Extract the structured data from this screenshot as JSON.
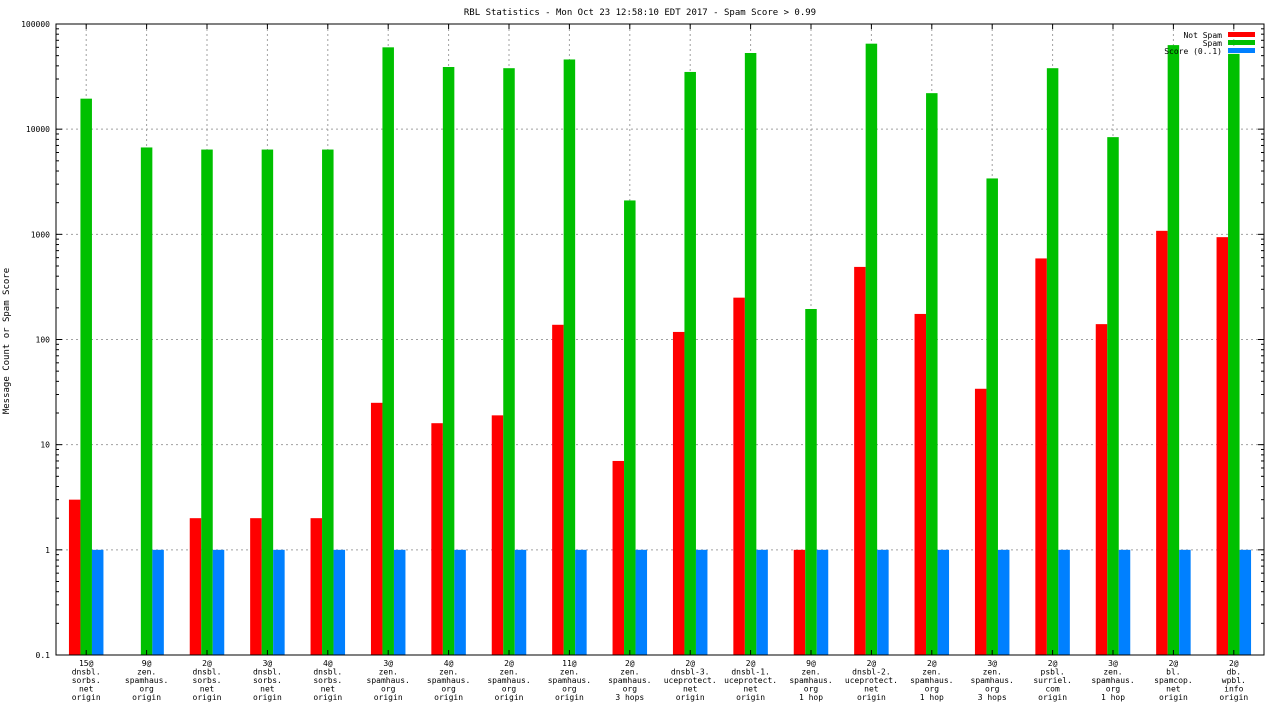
{
  "chart_data": {
    "type": "bar",
    "title": "RBL Statistics - Mon Oct 23 12:58:10 EDT 2017 - Spam Score > 0.99",
    "xlabel": "",
    "ylabel": "Message Count or Spam Score",
    "yscale": "log",
    "ylim": [
      0.1,
      100000
    ],
    "yticks": [
      "0.1",
      "1",
      "10",
      "100",
      "1000",
      "10000",
      "100000"
    ],
    "grid": true,
    "legend_position": "top-right",
    "categories": [
      [
        "15@",
        "dnsbl.",
        "sorbs.",
        "net",
        "origin"
      ],
      [
        "9@",
        "zen.",
        "spamhaus.",
        "org",
        "origin"
      ],
      [
        "2@",
        "dnsbl.",
        "sorbs.",
        "net",
        "origin"
      ],
      [
        "3@",
        "dnsbl.",
        "sorbs.",
        "net",
        "origin"
      ],
      [
        "4@",
        "dnsbl.",
        "sorbs.",
        "net",
        "origin"
      ],
      [
        "3@",
        "zen.",
        "spamhaus.",
        "org",
        "origin"
      ],
      [
        "4@",
        "zen.",
        "spamhaus.",
        "org",
        "origin"
      ],
      [
        "2@",
        "zen.",
        "spamhaus.",
        "org",
        "origin"
      ],
      [
        "11@",
        "zen.",
        "spamhaus.",
        "org",
        "origin"
      ],
      [
        "2@",
        "zen.",
        "spamhaus.",
        "org",
        "3 hops"
      ],
      [
        "2@",
        "dnsbl-3.",
        "uceprotect.",
        "net",
        "origin"
      ],
      [
        "2@",
        "dnsbl-1.",
        "uceprotect.",
        "net",
        "origin"
      ],
      [
        "9@",
        "zen.",
        "spamhaus.",
        "org",
        "1 hop"
      ],
      [
        "2@",
        "dnsbl-2.",
        "uceprotect.",
        "net",
        "origin"
      ],
      [
        "2@",
        "zen.",
        "spamhaus.",
        "org",
        "1 hop"
      ],
      [
        "3@",
        "zen.",
        "spamhaus.",
        "org",
        "3 hops"
      ],
      [
        "2@",
        "psbl.",
        "surriel.",
        "com",
        "origin"
      ],
      [
        "3@",
        "zen.",
        "spamhaus.",
        "org",
        "1 hop"
      ],
      [
        "2@",
        "bl.",
        "spamcop.",
        "net",
        "origin"
      ],
      [
        "2@",
        "db.",
        "wpbl.",
        "info",
        "origin"
      ]
    ],
    "series": [
      {
        "name": "Not Spam",
        "color": "#ff0000",
        "values": [
          3,
          null,
          2,
          2,
          2,
          25,
          16,
          19,
          138,
          7,
          118,
          250,
          1,
          490,
          175,
          34,
          590,
          140,
          1080,
          940
        ]
      },
      {
        "name": "Spam",
        "color": "#00c000",
        "values": [
          19500,
          6700,
          6400,
          6400,
          6400,
          60000,
          39000,
          38000,
          46000,
          2100,
          35000,
          53000,
          195,
          65000,
          22000,
          3400,
          38000,
          8400,
          63000,
          52000
        ]
      },
      {
        "name": "Score (0..1)",
        "color": "#0080ff",
        "values": [
          1,
          1,
          1,
          1,
          1,
          1,
          1,
          1,
          1,
          1,
          1,
          1,
          1,
          1,
          1,
          1,
          1,
          1,
          1,
          1
        ]
      }
    ]
  }
}
